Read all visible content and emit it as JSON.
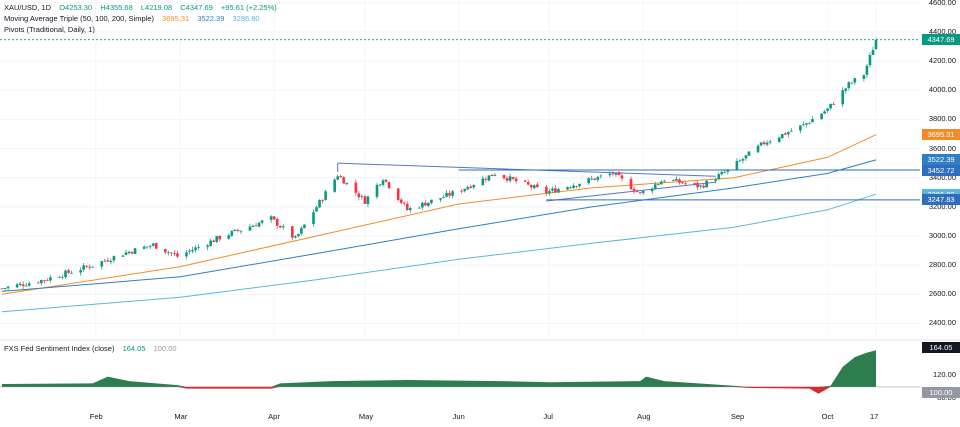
{
  "header": {
    "symbol": "XAU/USD, 1D",
    "ohlc": {
      "open": "O4253.30",
      "high": "H4355.68",
      "low": "L4219.08",
      "close": "C4347.69",
      "change": "+95.61 (+2.25%)"
    },
    "ma_title": "Moving Average Triple (50, 100, 200, Simple)",
    "ma_values": [
      "3695.31",
      "3522.39",
      "3286.80"
    ],
    "pivots_title": "Pivots (Traditional, Daily, 1)"
  },
  "sentiment": {
    "title": "FXS Fed Sentiment Index (close)",
    "value": "164.05",
    "baseline": "100.00"
  },
  "colors": {
    "up": "#089981",
    "down": "#f23645",
    "ma50": "#f28c28",
    "ma100": "#2f7fc1",
    "ma200": "#5ab8d6",
    "trendline": "#5b74c9",
    "sentiment_above": "#2e7d4f",
    "sentiment_below": "#d32f2f"
  },
  "chart_data": [
    {
      "type": "candlestick",
      "title": "XAU/USD, 1D",
      "x_ticks": [
        "Feb",
        "Mar",
        "Apr",
        "May",
        "Jun",
        "Jul",
        "Aug",
        "Sep",
        "Oct",
        "17"
      ],
      "y_ticks": [
        2400,
        2600,
        2800,
        3000,
        3200,
        3400,
        3600,
        3800,
        4000,
        4200,
        4400,
        4600
      ],
      "ylim": [
        2300,
        4620
      ],
      "price_tags": [
        {
          "label": "4347.69",
          "value": 4347.69,
          "color": "#089981"
        },
        {
          "label": "3695.31",
          "value": 3695.31,
          "color": "#f28c28"
        },
        {
          "label": "3522.39",
          "value": 3522.39,
          "color": "#2f7fc1"
        },
        {
          "label": "3452.72",
          "value": 3452.72,
          "color": "#2f6dbd"
        },
        {
          "label": "3286.80",
          "value": 3286.8,
          "color": "#5ab8d6"
        },
        {
          "label": "3247.83",
          "value": 3247.83,
          "color": "#2f6dbd"
        }
      ],
      "key_prices": [
        {
          "date": "2025-01-01",
          "close": 2640
        },
        {
          "date": "2025-01-15",
          "close": 2700
        },
        {
          "date": "2025-01-31",
          "close": 2800
        },
        {
          "date": "2025-02-10",
          "close": 2880
        },
        {
          "date": "2025-02-20",
          "close": 2940
        },
        {
          "date": "2025-02-28",
          "close": 2860
        },
        {
          "date": "2025-03-14",
          "close": 2990
        },
        {
          "date": "2025-03-31",
          "close": 3120
        },
        {
          "date": "2025-04-08",
          "close": 2980
        },
        {
          "date": "2025-04-22",
          "close": 3420
        },
        {
          "date": "2025-05-01",
          "close": 3240
        },
        {
          "date": "2025-05-07",
          "close": 3400
        },
        {
          "date": "2025-05-15",
          "close": 3180
        },
        {
          "date": "2025-05-31",
          "close": 3300
        },
        {
          "date": "2025-06-13",
          "close": 3430
        },
        {
          "date": "2025-06-30",
          "close": 3300
        },
        {
          "date": "2025-07-22",
          "close": 3430
        },
        {
          "date": "2025-07-31",
          "close": 3290
        },
        {
          "date": "2025-08-08",
          "close": 3390
        },
        {
          "date": "2025-08-20",
          "close": 3340
        },
        {
          "date": "2025-08-29",
          "close": 3450
        },
        {
          "date": "2025-09-10",
          "close": 3640
        },
        {
          "date": "2025-09-23",
          "close": 3760
        },
        {
          "date": "2025-10-01",
          "close": 3870
        },
        {
          "date": "2025-10-08",
          "close": 4040
        },
        {
          "date": "2025-10-13",
          "close": 4110
        },
        {
          "date": "2025-10-17",
          "close": 4347.69
        }
      ],
      "moving_averages": [
        {
          "name": "MA 50",
          "points": [
            [
              "2025-01-01",
              2600
            ],
            [
              "2025-03-01",
              2790
            ],
            [
              "2025-04-15",
              3000
            ],
            [
              "2025-06-01",
              3220
            ],
            [
              "2025-07-15",
              3330
            ],
            [
              "2025-08-31",
              3400
            ],
            [
              "2025-10-01",
              3540
            ],
            [
              "2025-10-17",
              3695.31
            ]
          ]
        },
        {
          "name": "MA 100",
          "points": [
            [
              "2025-01-01",
              2620
            ],
            [
              "2025-03-01",
              2720
            ],
            [
              "2025-04-15",
              2880
            ],
            [
              "2025-06-01",
              3050
            ],
            [
              "2025-07-15",
              3200
            ],
            [
              "2025-08-31",
              3330
            ],
            [
              "2025-10-01",
              3430
            ],
            [
              "2025-10-17",
              3522.39
            ]
          ]
        },
        {
          "name": "MA 200",
          "points": [
            [
              "2025-01-01",
              2480
            ],
            [
              "2025-03-01",
              2580
            ],
            [
              "2025-04-15",
              2700
            ],
            [
              "2025-06-01",
              2840
            ],
            [
              "2025-07-15",
              2950
            ],
            [
              "2025-08-31",
              3060
            ],
            [
              "2025-10-01",
              3180
            ],
            [
              "2025-10-17",
              3286.8
            ]
          ]
        }
      ],
      "trendlines": [
        {
          "points": [
            [
              "2025-04-22",
              3500
            ],
            [
              "2025-08-25",
              3410
            ]
          ]
        },
        {
          "points": [
            [
              "2025-06-30",
              3240
            ],
            [
              "2025-08-25",
              3370
            ]
          ]
        }
      ],
      "horizontal_levels": [
        3452.72,
        3247.83
      ]
    },
    {
      "type": "area",
      "title": "FXS Fed Sentiment Index (close)",
      "y_ticks": [
        80,
        120
      ],
      "ylim": [
        70,
        175
      ],
      "baseline": 100,
      "points": [
        [
          "2025-01-01",
          105
        ],
        [
          "2025-01-31",
          106
        ],
        [
          "2025-02-05",
          118
        ],
        [
          "2025-02-12",
          110
        ],
        [
          "2025-02-28",
          103
        ],
        [
          "2025-03-03",
          97
        ],
        [
          "2025-03-31",
          97
        ],
        [
          "2025-04-03",
          106
        ],
        [
          "2025-04-20",
          110
        ],
        [
          "2025-05-15",
          112
        ],
        [
          "2025-06-15",
          110
        ],
        [
          "2025-07-01",
          108
        ],
        [
          "2025-07-31",
          110
        ],
        [
          "2025-08-02",
          118
        ],
        [
          "2025-08-08",
          110
        ],
        [
          "2025-08-31",
          102
        ],
        [
          "2025-09-05",
          98
        ],
        [
          "2025-09-25",
          97
        ],
        [
          "2025-09-28",
          88
        ],
        [
          "2025-10-02",
          102
        ],
        [
          "2025-10-06",
          135
        ],
        [
          "2025-10-10",
          152
        ],
        [
          "2025-10-14",
          160
        ],
        [
          "2025-10-17",
          164.05
        ]
      ]
    }
  ]
}
